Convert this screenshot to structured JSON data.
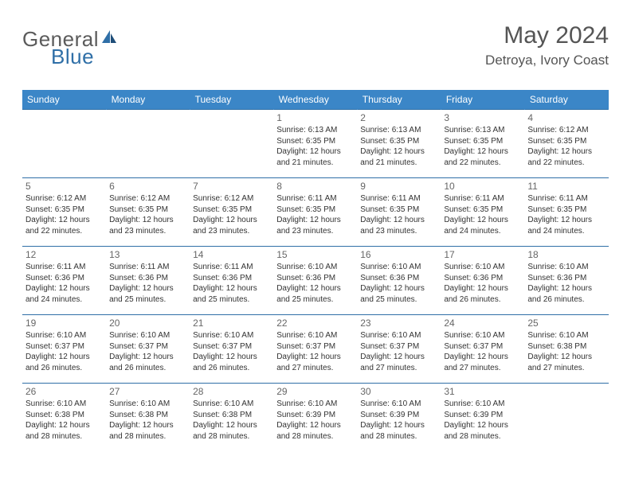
{
  "logo": {
    "text1": "General",
    "text2": "Blue"
  },
  "title": "May 2024",
  "location": "Detroya, Ivory Coast",
  "colors": {
    "header_bg": "#3b86c7",
    "header_text": "#ffffff",
    "border": "#2f6fa7",
    "body_text": "#333333",
    "daynum": "#666666",
    "logo_gray": "#5b5b5b",
    "logo_blue": "#2f6fa7",
    "page_bg": "#ffffff"
  },
  "weekdays": [
    "Sunday",
    "Monday",
    "Tuesday",
    "Wednesday",
    "Thursday",
    "Friday",
    "Saturday"
  ],
  "weeks": [
    [
      {
        "n": "",
        "sr": "",
        "ss": "",
        "dl": ""
      },
      {
        "n": "",
        "sr": "",
        "ss": "",
        "dl": ""
      },
      {
        "n": "",
        "sr": "",
        "ss": "",
        "dl": ""
      },
      {
        "n": "1",
        "sr": "6:13 AM",
        "ss": "6:35 PM",
        "dl": "12 hours and 21 minutes."
      },
      {
        "n": "2",
        "sr": "6:13 AM",
        "ss": "6:35 PM",
        "dl": "12 hours and 21 minutes."
      },
      {
        "n": "3",
        "sr": "6:13 AM",
        "ss": "6:35 PM",
        "dl": "12 hours and 22 minutes."
      },
      {
        "n": "4",
        "sr": "6:12 AM",
        "ss": "6:35 PM",
        "dl": "12 hours and 22 minutes."
      }
    ],
    [
      {
        "n": "5",
        "sr": "6:12 AM",
        "ss": "6:35 PM",
        "dl": "12 hours and 22 minutes."
      },
      {
        "n": "6",
        "sr": "6:12 AM",
        "ss": "6:35 PM",
        "dl": "12 hours and 23 minutes."
      },
      {
        "n": "7",
        "sr": "6:12 AM",
        "ss": "6:35 PM",
        "dl": "12 hours and 23 minutes."
      },
      {
        "n": "8",
        "sr": "6:11 AM",
        "ss": "6:35 PM",
        "dl": "12 hours and 23 minutes."
      },
      {
        "n": "9",
        "sr": "6:11 AM",
        "ss": "6:35 PM",
        "dl": "12 hours and 23 minutes."
      },
      {
        "n": "10",
        "sr": "6:11 AM",
        "ss": "6:35 PM",
        "dl": "12 hours and 24 minutes."
      },
      {
        "n": "11",
        "sr": "6:11 AM",
        "ss": "6:35 PM",
        "dl": "12 hours and 24 minutes."
      }
    ],
    [
      {
        "n": "12",
        "sr": "6:11 AM",
        "ss": "6:36 PM",
        "dl": "12 hours and 24 minutes."
      },
      {
        "n": "13",
        "sr": "6:11 AM",
        "ss": "6:36 PM",
        "dl": "12 hours and 25 minutes."
      },
      {
        "n": "14",
        "sr": "6:11 AM",
        "ss": "6:36 PM",
        "dl": "12 hours and 25 minutes."
      },
      {
        "n": "15",
        "sr": "6:10 AM",
        "ss": "6:36 PM",
        "dl": "12 hours and 25 minutes."
      },
      {
        "n": "16",
        "sr": "6:10 AM",
        "ss": "6:36 PM",
        "dl": "12 hours and 25 minutes."
      },
      {
        "n": "17",
        "sr": "6:10 AM",
        "ss": "6:36 PM",
        "dl": "12 hours and 26 minutes."
      },
      {
        "n": "18",
        "sr": "6:10 AM",
        "ss": "6:36 PM",
        "dl": "12 hours and 26 minutes."
      }
    ],
    [
      {
        "n": "19",
        "sr": "6:10 AM",
        "ss": "6:37 PM",
        "dl": "12 hours and 26 minutes."
      },
      {
        "n": "20",
        "sr": "6:10 AM",
        "ss": "6:37 PM",
        "dl": "12 hours and 26 minutes."
      },
      {
        "n": "21",
        "sr": "6:10 AM",
        "ss": "6:37 PM",
        "dl": "12 hours and 26 minutes."
      },
      {
        "n": "22",
        "sr": "6:10 AM",
        "ss": "6:37 PM",
        "dl": "12 hours and 27 minutes."
      },
      {
        "n": "23",
        "sr": "6:10 AM",
        "ss": "6:37 PM",
        "dl": "12 hours and 27 minutes."
      },
      {
        "n": "24",
        "sr": "6:10 AM",
        "ss": "6:37 PM",
        "dl": "12 hours and 27 minutes."
      },
      {
        "n": "25",
        "sr": "6:10 AM",
        "ss": "6:38 PM",
        "dl": "12 hours and 27 minutes."
      }
    ],
    [
      {
        "n": "26",
        "sr": "6:10 AM",
        "ss": "6:38 PM",
        "dl": "12 hours and 28 minutes."
      },
      {
        "n": "27",
        "sr": "6:10 AM",
        "ss": "6:38 PM",
        "dl": "12 hours and 28 minutes."
      },
      {
        "n": "28",
        "sr": "6:10 AM",
        "ss": "6:38 PM",
        "dl": "12 hours and 28 minutes."
      },
      {
        "n": "29",
        "sr": "6:10 AM",
        "ss": "6:39 PM",
        "dl": "12 hours and 28 minutes."
      },
      {
        "n": "30",
        "sr": "6:10 AM",
        "ss": "6:39 PM",
        "dl": "12 hours and 28 minutes."
      },
      {
        "n": "31",
        "sr": "6:10 AM",
        "ss": "6:39 PM",
        "dl": "12 hours and 28 minutes."
      },
      {
        "n": "",
        "sr": "",
        "ss": "",
        "dl": ""
      }
    ]
  ],
  "labels": {
    "sunrise": "Sunrise:",
    "sunset": "Sunset:",
    "daylight": "Daylight:"
  }
}
